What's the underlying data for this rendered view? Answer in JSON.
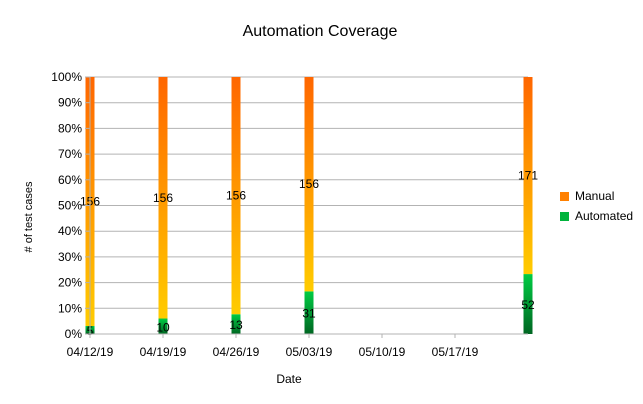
{
  "chart_data": {
    "type": "bar",
    "stacked": "percent",
    "title": "Automation Coverage",
    "xlabel": "Date",
    "ylabel": "# of test cases",
    "x_tick_labels": [
      "04/12/19",
      "04/19/19",
      "04/26/19",
      "05/03/19",
      "05/10/19",
      "05/17/19"
    ],
    "y_tick_labels": [
      "0%",
      "10%",
      "20%",
      "30%",
      "40%",
      "50%",
      "60%",
      "70%",
      "80%",
      "90%",
      "100%"
    ],
    "ylim": [
      0,
      100
    ],
    "grid": "horizontal",
    "legend_position": "right",
    "x_axis_type": "date",
    "x_axis_min": "2019-04-12",
    "x_axis_max": "2019-05-24",
    "categories": [
      "2019-04-12",
      "2019-04-19",
      "2019-04-26",
      "2019-05-03",
      "2019-05-24"
    ],
    "series": [
      {
        "name": "Manual",
        "values": [
          156,
          156,
          156,
          156,
          171
        ],
        "color_top": "#ff6600",
        "color_bottom": "#ffcc00"
      },
      {
        "name": "Automated",
        "values": [
          5,
          10,
          13,
          31,
          52
        ],
        "color_top": "#00cc44",
        "color_bottom": "#006622"
      }
    ]
  },
  "legend": {
    "items": [
      {
        "label": "Manual",
        "color": "#ff8000"
      },
      {
        "label": "Automated",
        "color": "#00b33c"
      }
    ]
  }
}
